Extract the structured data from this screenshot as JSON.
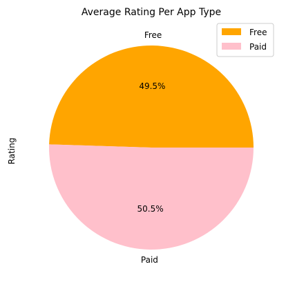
{
  "chart_data": {
    "type": "pie",
    "title": "Average Rating Per App Type",
    "ylabel": "Rating",
    "categories": [
      "Free",
      "Paid"
    ],
    "values": [
      49.5,
      50.5
    ],
    "percent_labels": [
      "49.5%",
      "50.5%"
    ],
    "colors": [
      "#FFA500",
      "#FFC0CB"
    ],
    "legend": {
      "placement": "top-right",
      "entries": [
        "Free",
        "Paid"
      ]
    }
  }
}
